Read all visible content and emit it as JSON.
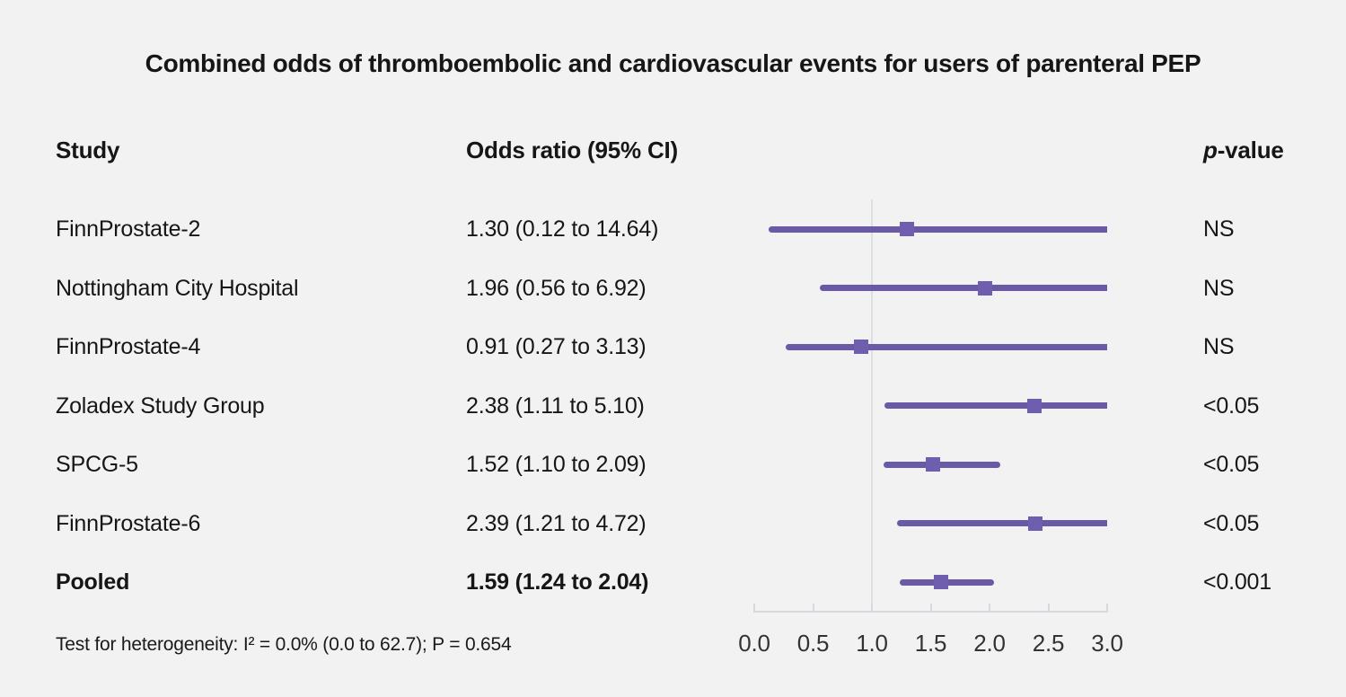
{
  "title": "Combined odds of thromboembolic and cardiovascular events for users of parenteral PEP",
  "columns": {
    "study": "Study",
    "odds_ratio": "Odds ratio (95% CI)",
    "p_value_header": {
      "italic": "p",
      "rest": "-value"
    }
  },
  "footer": "Test for heterogeneity: I² = 0.0% (0.0 to 62.7); P = 0.654",
  "colors": {
    "background": "#f2f2f2",
    "text": "#161616",
    "ci_line": "#6a59a4",
    "marker": "#6f5ead",
    "axis": "#d6dade",
    "reference_line": "#dadfe3",
    "tick_label": "#333333"
  },
  "chart_data": {
    "type": "scatter",
    "variant": "forest-plot",
    "title": "Combined odds of thromboembolic and cardiovascular events for users of parenteral PEP",
    "axis": {
      "xlim": [
        0,
        3
      ],
      "ticks": [
        0,
        0.5,
        1,
        1.5,
        2,
        2.5,
        3
      ],
      "tick_labels": [
        "0.0",
        "0.5",
        "1.0",
        "1.5",
        "2.0",
        "2.5",
        "3.0"
      ],
      "reference_line": 1.0,
      "grid": false
    },
    "legend": null,
    "rows": [
      {
        "study": "FinnProstate-2",
        "or": 1.3,
        "ci_low": 0.12,
        "ci_high": 14.64,
        "or_label": "1.30 (0.12 to 14.64)",
        "p": "NS",
        "bold": false
      },
      {
        "study": "Nottingham City Hospital",
        "or": 1.96,
        "ci_low": 0.56,
        "ci_high": 6.92,
        "or_label": "1.96 (0.56 to 6.92)",
        "p": "NS",
        "bold": false
      },
      {
        "study": "FinnProstate-4",
        "or": 0.91,
        "ci_low": 0.27,
        "ci_high": 3.13,
        "or_label": "0.91 (0.27 to 3.13)",
        "p": "NS",
        "bold": false
      },
      {
        "study": "Zoladex Study Group",
        "or": 2.38,
        "ci_low": 1.11,
        "ci_high": 5.1,
        "or_label": "2.38 (1.11 to 5.10)",
        "p": "<0.05",
        "bold": false
      },
      {
        "study": "SPCG-5",
        "or": 1.52,
        "ci_low": 1.1,
        "ci_high": 2.09,
        "or_label": "1.52 (1.10 to 2.09)",
        "p": "<0.05",
        "bold": false
      },
      {
        "study": "FinnProstate-6",
        "or": 2.39,
        "ci_low": 1.21,
        "ci_high": 4.72,
        "or_label": "2.39 (1.21 to 4.72)",
        "p": "<0.05",
        "bold": false
      },
      {
        "study": "Pooled",
        "or": 1.59,
        "ci_low": 1.24,
        "ci_high": 2.04,
        "or_label": "1.59 (1.24 to 2.04)",
        "p": "<0.001",
        "bold": true
      }
    ]
  }
}
